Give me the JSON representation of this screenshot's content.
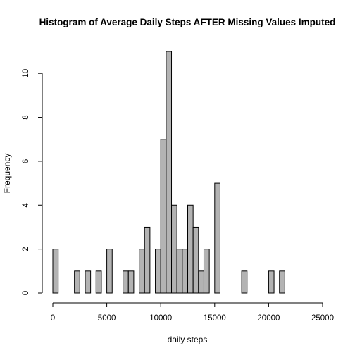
{
  "chart_data": {
    "type": "bar",
    "title": "Histogram of Average Daily Steps AFTER Missing Values Imputed",
    "xlabel": "daily steps",
    "ylabel": "Frequency",
    "xlim": [
      0,
      25000
    ],
    "ylim": [
      0,
      11
    ],
    "bin_width": 500,
    "bin_start": 0,
    "x_ticks": [
      0,
      5000,
      10000,
      15000,
      20000,
      25000
    ],
    "y_ticks": [
      0,
      2,
      4,
      6,
      8,
      10
    ],
    "values": [
      2,
      0,
      0,
      0,
      1,
      0,
      1,
      0,
      1,
      0,
      2,
      0,
      0,
      1,
      1,
      0,
      2,
      3,
      0,
      2,
      7,
      11,
      4,
      2,
      2,
      4,
      3,
      1,
      2,
      0,
      5,
      0,
      0,
      0,
      0,
      1,
      0,
      0,
      0,
      0,
      1,
      0,
      1
    ],
    "bar_color": "#b3b3b3",
    "grid": false
  }
}
